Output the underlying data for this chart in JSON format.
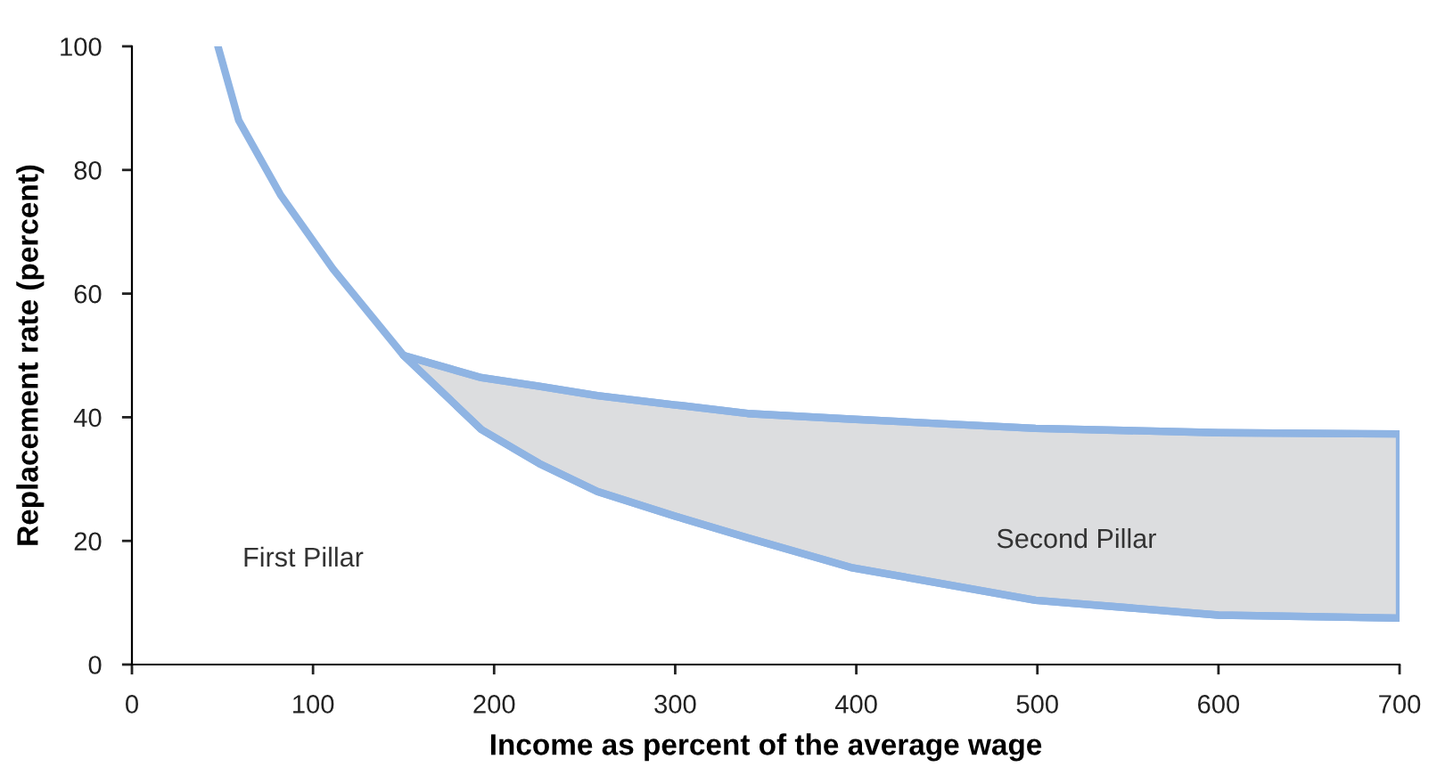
{
  "chart_data": {
    "type": "line",
    "xlabel": "Income as percent of the average wage",
    "ylabel": "Replacement rate (percent)",
    "series": [
      {
        "color": "#8fb4e3",
        "x": [
          47.5,
          59,
          82,
          111,
          150,
          193,
          225,
          257,
          300,
          340,
          397,
          499,
          600,
          700
        ],
        "values": [
          100,
          88,
          76,
          64,
          50,
          38,
          32.5,
          28,
          24,
          20.5,
          15.7,
          10.4,
          8,
          7.5
        ]
      },
      {
        "color": "#8fb4e3",
        "x": [
          150,
          193,
          225,
          257,
          300,
          340,
          397,
          499,
          600,
          700
        ],
        "values": [
          50,
          46.4,
          45,
          43.5,
          42,
          40.6,
          39.7,
          38.2,
          37.5,
          37.3
        ],
        "lower": [
          50,
          38,
          32.5,
          28,
          24,
          20.5,
          15.7,
          10.4,
          8,
          7.5
        ],
        "upper": [
          50,
          46.4,
          45,
          43.5,
          42,
          40.6,
          39.7,
          38.2,
          37.5,
          37.3
        ]
      }
    ],
    "annotations": [
      "First Pillar",
      "Second Pillar"
    ],
    "xlim": [
      0,
      700
    ],
    "ylim": [
      0,
      100
    ],
    "xticks": [
      0,
      100,
      200,
      300,
      400,
      500,
      600,
      700
    ],
    "yticks": [
      0,
      20,
      40,
      60,
      80,
      100
    ],
    "grid": false,
    "legend": false
  }
}
